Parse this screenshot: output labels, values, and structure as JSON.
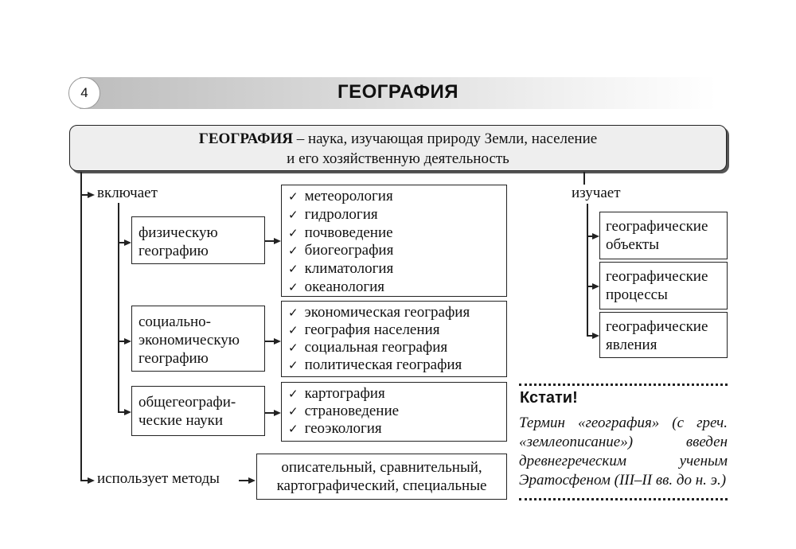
{
  "header": {
    "page_number": "4",
    "title": "ГЕОГРАФИЯ"
  },
  "definition": {
    "term": "ГЕОГРАФИЯ",
    "text_line1": " – наука, изучающая природу Земли, население",
    "text_line2": "и его хозяйственную деятельность"
  },
  "includes": {
    "label": "включает",
    "branches": [
      {
        "name": "физическую географию",
        "items": [
          "метеорология",
          "гидрология",
          "почвоведение",
          "биогеография",
          "климатология",
          "океанология"
        ]
      },
      {
        "name": "социально-экономическую географию",
        "items": [
          "экономическая география",
          "география населения",
          "социальная география",
          "политическая география"
        ]
      },
      {
        "name": "общегеографические науки",
        "items": [
          "картография",
          "страноведение",
          "геоэкология"
        ]
      }
    ]
  },
  "branch_lines": [
    [
      "физическую",
      "географию"
    ],
    [
      "социально-",
      "экономическую",
      "географию"
    ],
    [
      "общегеографи-",
      "ческие науки"
    ]
  ],
  "methods": {
    "label": "использует методы",
    "line1": "описательный, сравнительный,",
    "line2": "картографический, специальные"
  },
  "studies": {
    "label": "изучает",
    "items": [
      [
        "географические",
        "объекты"
      ],
      [
        "географические",
        "процессы"
      ],
      [
        "географические",
        "явления"
      ]
    ]
  },
  "note": {
    "title": "Кстати!",
    "text": "Термин «география» (с греч. «землеописание») введен древнегреческим ученым Эратосфеном (III–II вв. до н. э.)"
  }
}
